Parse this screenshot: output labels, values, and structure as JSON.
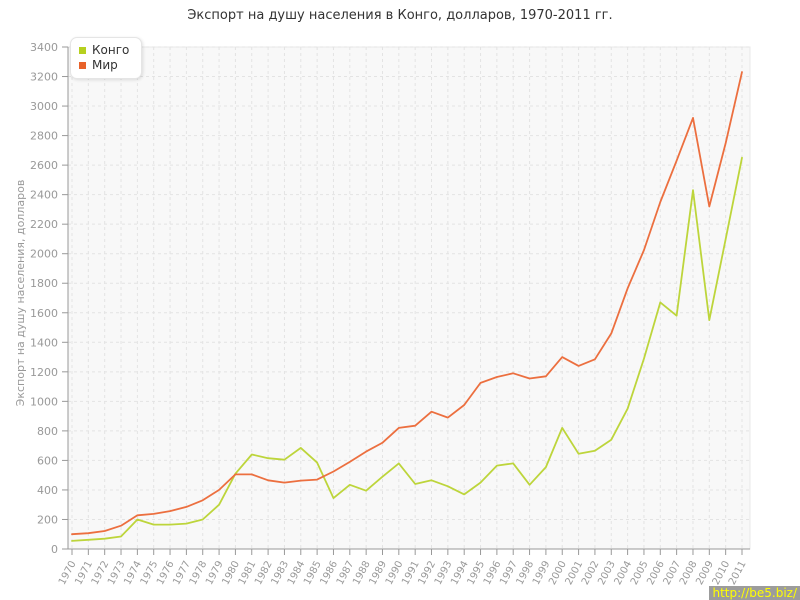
{
  "title": "Экспорт на душу населения в Конго, долларов, 1970-2011 гг.",
  "watermark": "http://be5.biz/",
  "legend": [
    {
      "label": "Конго",
      "color": "#b6d01f"
    },
    {
      "label": "Мир",
      "color": "#e8622a"
    }
  ],
  "chart_data": {
    "type": "line",
    "title": "Экспорт на душу населения в Конго, долларов, 1970-2011 гг.",
    "xlabel": "",
    "ylabel": "Экспорт на душу населения, долларов",
    "x": [
      1970,
      1971,
      1972,
      1973,
      1974,
      1975,
      1976,
      1977,
      1978,
      1979,
      1980,
      1981,
      1982,
      1983,
      1984,
      1985,
      1986,
      1987,
      1988,
      1989,
      1990,
      1991,
      1992,
      1993,
      1994,
      1995,
      1996,
      1997,
      1998,
      1999,
      2000,
      2001,
      2002,
      2003,
      2004,
      2005,
      2006,
      2007,
      2008,
      2009,
      2010,
      2011
    ],
    "series": [
      {
        "name": "Конго",
        "color": "#bdd53b",
        "values": [
          55,
          62,
          70,
          85,
          200,
          165,
          165,
          172,
          200,
          300,
          510,
          640,
          615,
          605,
          685,
          585,
          345,
          435,
          395,
          490,
          580,
          440,
          465,
          425,
          370,
          450,
          565,
          580,
          435,
          555,
          820,
          645,
          665,
          740,
          950,
          1290,
          1670,
          1580,
          2430,
          1550,
          2100,
          2650
        ]
      },
      {
        "name": "Мир",
        "color": "#ec6f3f",
        "values": [
          100,
          107,
          122,
          158,
          228,
          238,
          257,
          285,
          330,
          400,
          505,
          505,
          465,
          450,
          463,
          470,
          525,
          590,
          660,
          720,
          820,
          835,
          930,
          890,
          975,
          1125,
          1165,
          1190,
          1155,
          1170,
          1300,
          1240,
          1285,
          1460,
          1765,
          2025,
          2350,
          2630,
          2920,
          2320,
          2750,
          3230
        ]
      }
    ],
    "ylim": [
      0,
      3400
    ],
    "ytick_step": 200,
    "grid": true,
    "legend_position": "top-left",
    "colors": {
      "grid": "#e3e3e3",
      "axis": "#999999",
      "tick_label": "#999999",
      "plot_bg": "#f8f8f8",
      "plot_border": "#e8e8e8"
    }
  }
}
